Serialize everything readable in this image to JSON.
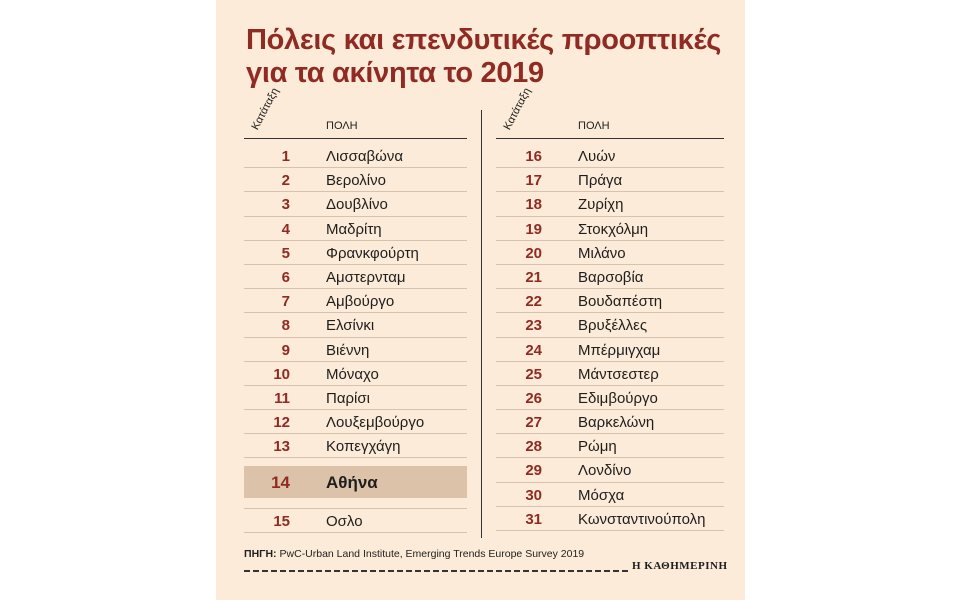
{
  "title": {
    "line1": "Πόλεις και επενδυτικές προοπτικές",
    "line2": "για τα ακίνητα το 2019"
  },
  "table": {
    "rank_header": "Κατάταξη",
    "city_header": "ΠΟΛΗ",
    "left": [
      {
        "rank": "1",
        "city": "Λισσαβώνα"
      },
      {
        "rank": "2",
        "city": "Βερολίνο"
      },
      {
        "rank": "3",
        "city": "Δουβλίνο"
      },
      {
        "rank": "4",
        "city": "Μαδρίτη"
      },
      {
        "rank": "5",
        "city": "Φρανκφούρτη"
      },
      {
        "rank": "6",
        "city": "Αμστερνταμ"
      },
      {
        "rank": "7",
        "city": "Αμβούργο"
      },
      {
        "rank": "8",
        "city": "Ελσίνκι"
      },
      {
        "rank": "9",
        "city": "Βιέννη"
      },
      {
        "rank": "10",
        "city": "Μόναχο"
      },
      {
        "rank": "11",
        "city": "Παρίσι"
      },
      {
        "rank": "12",
        "city": "Λουξεμβούργο"
      },
      {
        "rank": "13",
        "city": "Κοπεγχάγη"
      },
      {
        "rank": "14",
        "city": "Αθήνα",
        "highlight": true
      },
      {
        "rank": "15",
        "city": "Οσλο"
      }
    ],
    "right": [
      {
        "rank": "16",
        "city": "Λυών"
      },
      {
        "rank": "17",
        "city": "Πράγα"
      },
      {
        "rank": "18",
        "city": "Ζυρίχη"
      },
      {
        "rank": "19",
        "city": "Στοκχόλμη"
      },
      {
        "rank": "20",
        "city": "Μιλάνο"
      },
      {
        "rank": "21",
        "city": "Βαρσοβία"
      },
      {
        "rank": "22",
        "city": "Βουδαπέστη"
      },
      {
        "rank": "23",
        "city": "Βρυξέλλες"
      },
      {
        "rank": "24",
        "city": "Μπέρμιγχαμ"
      },
      {
        "rank": "25",
        "city": "Μάντσεστερ"
      },
      {
        "rank": "26",
        "city": "Εδιμβούργο"
      },
      {
        "rank": "27",
        "city": "Βαρκελώνη"
      },
      {
        "rank": "28",
        "city": "Ρώμη"
      },
      {
        "rank": "29",
        "city": "Λονδίνο"
      },
      {
        "rank": "30",
        "city": "Μόσχα"
      },
      {
        "rank": "31",
        "city": "Κωνσταντινούπολη"
      }
    ]
  },
  "source": {
    "label": "ΠΗΓΗ:",
    "text": "PwC-Urban Land Institute, Emerging Trends Europe Survey 2019"
  },
  "brand": "Η ΚΑΘΗΜΕΡΙΝΗ",
  "colors": {
    "background": "#fbebd8",
    "accent": "#8f2b23",
    "highlight": "#dcc2a8"
  }
}
